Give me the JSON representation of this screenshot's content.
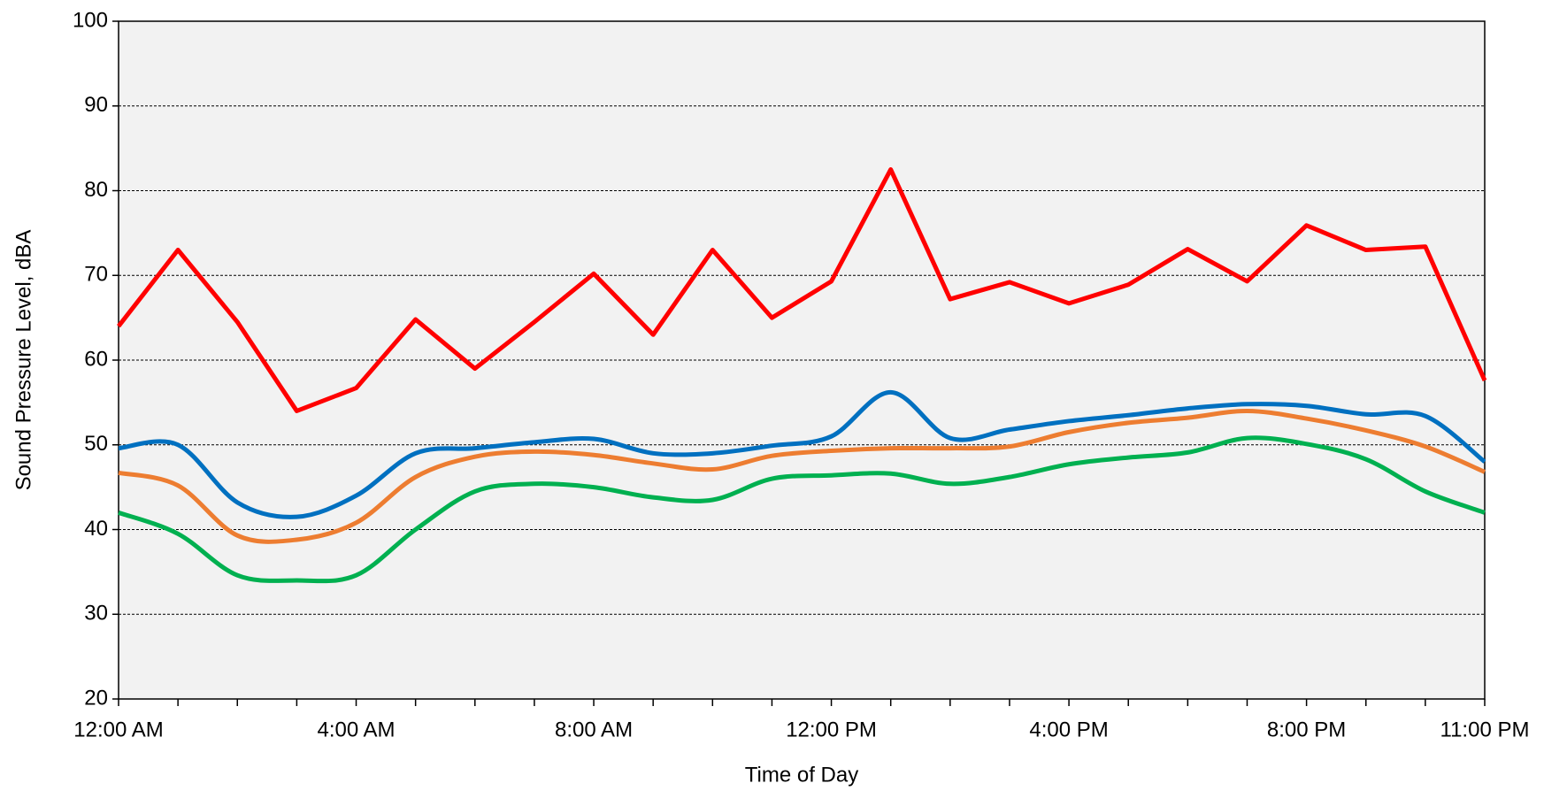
{
  "chart_data": {
    "type": "line",
    "xlabel": "Time of Day",
    "ylabel": "Sound Pressure Level, dBA",
    "categories": [
      "12:00 AM",
      null,
      null,
      null,
      "4:00 AM",
      null,
      null,
      null,
      "8:00 AM",
      null,
      null,
      null,
      "12:00 PM",
      null,
      null,
      null,
      "4:00 PM",
      null,
      null,
      null,
      "8:00 PM",
      null,
      null,
      "11:00 PM"
    ],
    "ylim": [
      20,
      100
    ],
    "yticks": [
      20,
      30,
      40,
      50,
      60,
      70,
      80,
      90,
      100
    ],
    "grid": true,
    "series": [
      {
        "color": "#ff0000",
        "smooth": false,
        "values": [
          64,
          73,
          64.5,
          54,
          56.7,
          64.8,
          59,
          64.5,
          70.2,
          63,
          73,
          65,
          69.3,
          82.5,
          67.2,
          69.2,
          66.7,
          68.9,
          73.1,
          69.3,
          75.9,
          73,
          73.4,
          57.6
        ]
      },
      {
        "color": "#0070c0",
        "smooth": true,
        "values": [
          49.6,
          50,
          43.2,
          41.5,
          44,
          49,
          49.6,
          50.3,
          50.7,
          49,
          49,
          49.9,
          51,
          56.2,
          50.8,
          51.8,
          52.8,
          53.5,
          54.3,
          54.8,
          54.6,
          53.6,
          53.4,
          48
        ]
      },
      {
        "color": "#ed7d31",
        "smooth": true,
        "values": [
          46.7,
          45.2,
          39.3,
          38.8,
          40.8,
          46.2,
          48.6,
          49.2,
          48.8,
          47.8,
          47.1,
          48.7,
          49.3,
          49.6,
          49.6,
          49.8,
          51.5,
          52.6,
          53.2,
          54,
          53.1,
          51.7,
          49.8,
          46.8
        ]
      },
      {
        "color": "#00b050",
        "smooth": true,
        "values": [
          42,
          39.5,
          34.6,
          34,
          34.6,
          40,
          44.5,
          45.4,
          45,
          43.8,
          43.5,
          46,
          46.4,
          46.6,
          45.4,
          46.2,
          47.7,
          48.5,
          49.1,
          50.8,
          50.1,
          48.3,
          44.5,
          42
        ]
      }
    ]
  }
}
